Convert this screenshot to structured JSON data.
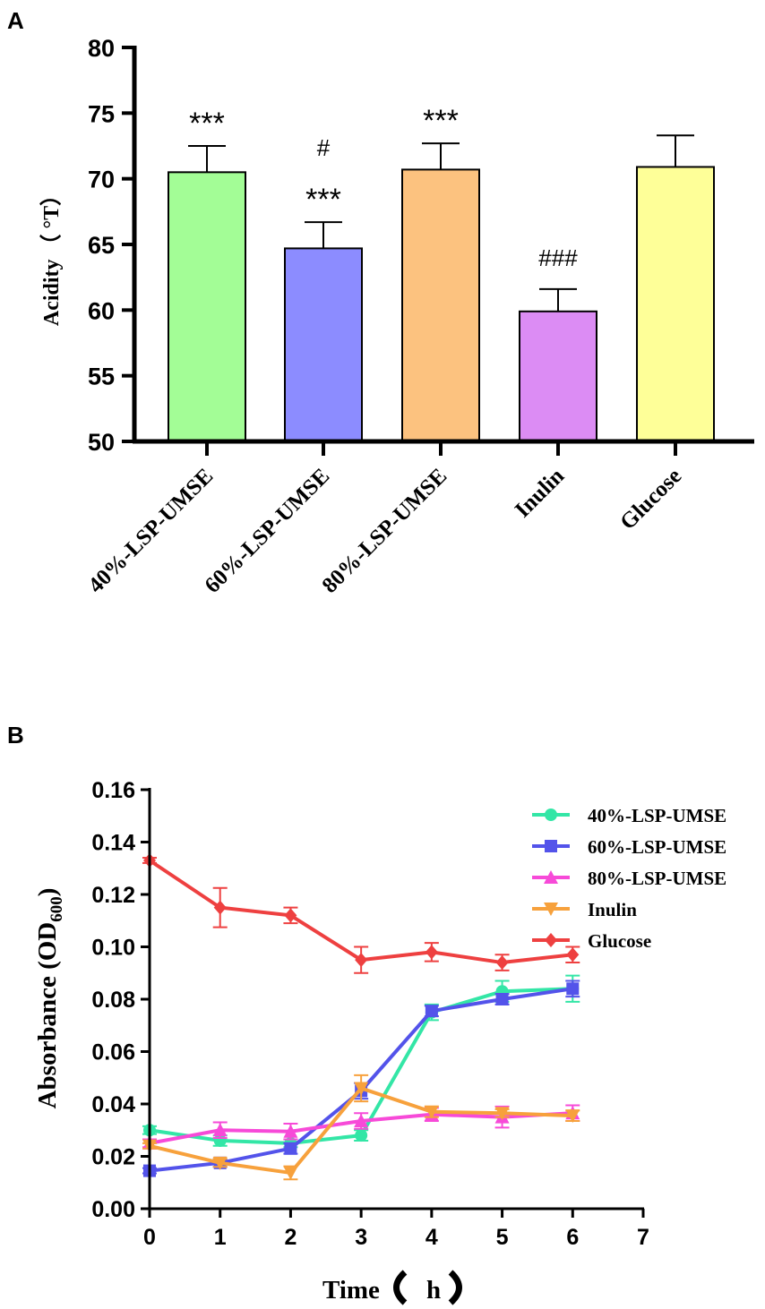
{
  "chart_data": [
    {
      "panel_label": "A",
      "type": "bar",
      "ylabel": "Acidity",
      "ylabel_unit": "（ °T）",
      "ylim": [
        50,
        80
      ],
      "yticks": [
        "50",
        "55",
        "60",
        "65",
        "70",
        "75",
        "80"
      ],
      "categories": [
        "40%-LSP-UMSE",
        "60%-LSP-UMSE",
        "80%-LSP-UMSE",
        "Inulin",
        "Glucose"
      ],
      "values": [
        70.5,
        64.7,
        70.7,
        59.9,
        70.9
      ],
      "errors": [
        2.0,
        2.0,
        2.0,
        1.7,
        2.4
      ],
      "colors": [
        "#a3fd96",
        "#8c8cff",
        "#fcc27f",
        "#dc8cf4",
        "#feff98"
      ],
      "annotations": [
        [
          "***"
        ],
        [
          "#",
          "***"
        ],
        [
          "***"
        ],
        [
          "###"
        ],
        []
      ]
    },
    {
      "panel_label": "B",
      "type": "line",
      "xlabel": "Time",
      "xlabel_unit": "h",
      "ylabel": "Absorbance (OD",
      "ylabel_sub": "600",
      "ylabel_close": ")",
      "xlim": [
        0,
        7
      ],
      "ylim": [
        0,
        0.16
      ],
      "xticks": [
        "0",
        "1",
        "2",
        "3",
        "4",
        "5",
        "6",
        "7"
      ],
      "yticks": [
        "0.00",
        "0.02",
        "0.04",
        "0.06",
        "0.08",
        "0.10",
        "0.12",
        "0.14",
        "0.16"
      ],
      "x": [
        0,
        1,
        2,
        3,
        4,
        5,
        6
      ],
      "series": [
        {
          "name": "40%-LSP-UMSE",
          "marker": "circle",
          "color": "#33e6a6",
          "values": [
            0.03,
            0.026,
            0.025,
            0.028,
            0.075,
            0.083,
            0.084
          ],
          "errors": [
            0.0015,
            0.002,
            0.0015,
            0.002,
            0.003,
            0.004,
            0.005
          ]
        },
        {
          "name": "60%-LSP-UMSE",
          "marker": "square",
          "color": "#5353ea",
          "values": [
            0.0145,
            0.0175,
            0.023,
            0.045,
            0.0755,
            0.08,
            0.084
          ],
          "errors": [
            0.001,
            0.0015,
            0.002,
            0.003,
            0.002,
            0.002,
            0.003
          ]
        },
        {
          "name": "80%-LSP-UMSE",
          "marker": "triangle-up",
          "color": "#f74ad8",
          "values": [
            0.025,
            0.03,
            0.0295,
            0.0335,
            0.036,
            0.035,
            0.0365
          ],
          "errors": [
            0.0015,
            0.003,
            0.003,
            0.003,
            0.0025,
            0.004,
            0.003
          ]
        },
        {
          "name": "Inulin",
          "marker": "triangle-down",
          "color": "#f7a13c",
          "values": [
            0.024,
            0.0175,
            0.0137,
            0.046,
            0.037,
            0.0365,
            0.0355
          ],
          "errors": [
            0.001,
            0.0015,
            0.0025,
            0.005,
            0.002,
            0.0015,
            0.002
          ]
        },
        {
          "name": "Glucose",
          "marker": "diamond",
          "color": "#ee4040",
          "values": [
            0.133,
            0.115,
            0.112,
            0.095,
            0.098,
            0.094,
            0.097
          ],
          "errors": [
            0.001,
            0.0075,
            0.003,
            0.005,
            0.0035,
            0.003,
            0.003
          ]
        }
      ]
    }
  ]
}
